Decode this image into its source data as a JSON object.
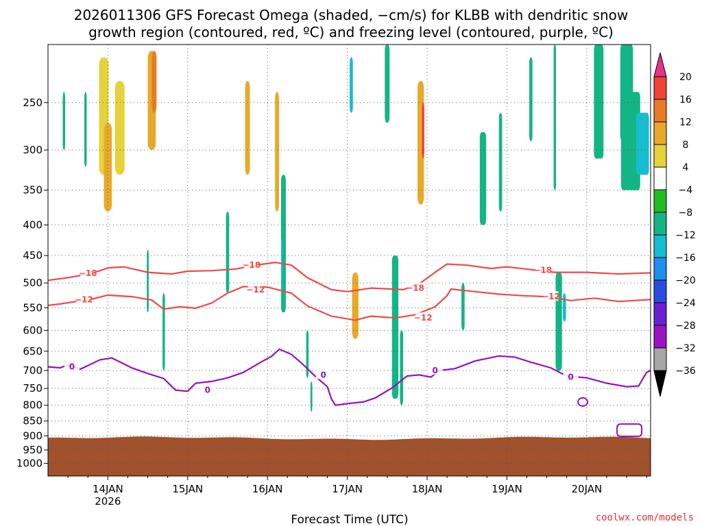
{
  "chart_data": {
    "type": "heatmap",
    "title_lines": [
      "2026011306 GFS Forecast Omega (shaded, −cm/s) for KLBB with dendritic snow",
      "growth region (contoured, red, ºC) and freezing level (contoured, purple, ºC)"
    ],
    "xlabel": "Forecast Time (UTC)",
    "x_ticks": [
      {
        "label": "14JAN",
        "sub": "2026",
        "day": 14
      },
      {
        "label": "15JAN",
        "sub": "",
        "day": 15
      },
      {
        "label": "16JAN",
        "sub": "",
        "day": 16
      },
      {
        "label": "17JAN",
        "sub": "",
        "day": 17
      },
      {
        "label": "18JAN",
        "sub": "",
        "day": 18
      },
      {
        "label": "19JAN",
        "sub": "",
        "day": 19
      },
      {
        "label": "20JAN",
        "sub": "",
        "day": 20
      }
    ],
    "xlim_days": [
      13.25,
      20.8
    ],
    "y_axis": {
      "scale": "log-pressure",
      "top_hPa": 200,
      "bottom_hPa": 1050,
      "ticks": [
        "250",
        "300",
        "350",
        "400",
        "450",
        "500",
        "550",
        "600",
        "650",
        "700",
        "750",
        "800",
        "850",
        "900",
        "950",
        "1000"
      ]
    },
    "colorbar": {
      "labels": [
        "20",
        "16",
        "12",
        "8",
        "4",
        "−4",
        "−8",
        "−12",
        "−16",
        "−20",
        "−24",
        "−28",
        "−32",
        "−36"
      ],
      "colors": [
        "#e8318a",
        "#f04434",
        "#ea7a26",
        "#e8a92a",
        "#e6d23a",
        "#ffffff",
        "#22bb22",
        "#14b585",
        "#18bcd0",
        "#1e8ef0",
        "#2a4de0",
        "#6a1fd0",
        "#9a12c4",
        "#a7a7a7",
        "#000000"
      ]
    },
    "terrain_color": "#a0522d",
    "contours": [
      {
        "label": "−18",
        "color": "#f04848",
        "temp_C": -18
      },
      {
        "label": "−12",
        "color": "#f04848",
        "temp_C": -12
      },
      {
        "label": "0",
        "color": "#9410c0",
        "temp_C": 0
      }
    ],
    "grid": true,
    "credit": "coolwx.com/models"
  }
}
